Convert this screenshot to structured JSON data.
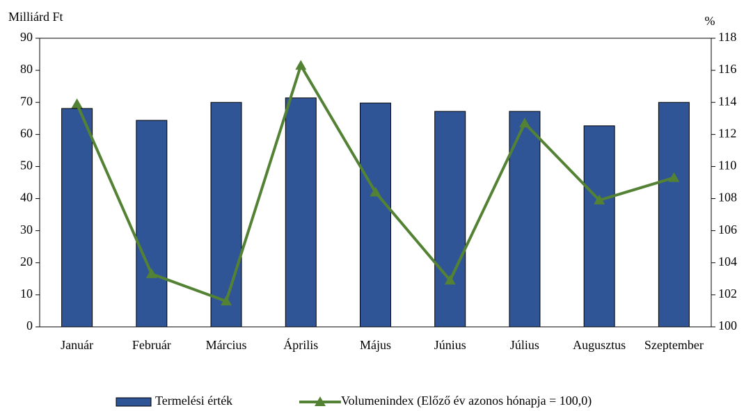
{
  "chart_data": {
    "type": "bar_line",
    "y_label": "Milliárd Ft",
    "y2_label": "%",
    "categories": [
      "Január",
      "Február",
      "Március",
      "Április",
      "Május",
      "Június",
      "Július",
      "Augusztus",
      "Szeptember"
    ],
    "series": [
      {
        "name": "Termelési érték",
        "type": "bar",
        "color": "#2f5597",
        "values": [
          68.1,
          64.4,
          70,
          71.4,
          69.8,
          67.2,
          67.2,
          62.7,
          70
        ]
      },
      {
        "name": "Volumenindex (Előző év azonos hónapja = 100,0)",
        "type": "line",
        "axis": "y2",
        "color": "#548235",
        "values": [
          113.9,
          103.3,
          101.6,
          116.3,
          108.4,
          102.9,
          112.7,
          107.9,
          109.3
        ]
      }
    ],
    "ylim": [
      0,
      90
    ],
    "yticks": [
      0,
      10,
      20,
      30,
      40,
      50,
      60,
      70,
      80,
      90
    ],
    "y2lim": [
      100,
      118
    ],
    "y2ticks": [
      100,
      102,
      104,
      106,
      108,
      110,
      112,
      114,
      116,
      118
    ],
    "legend": "bottom"
  }
}
